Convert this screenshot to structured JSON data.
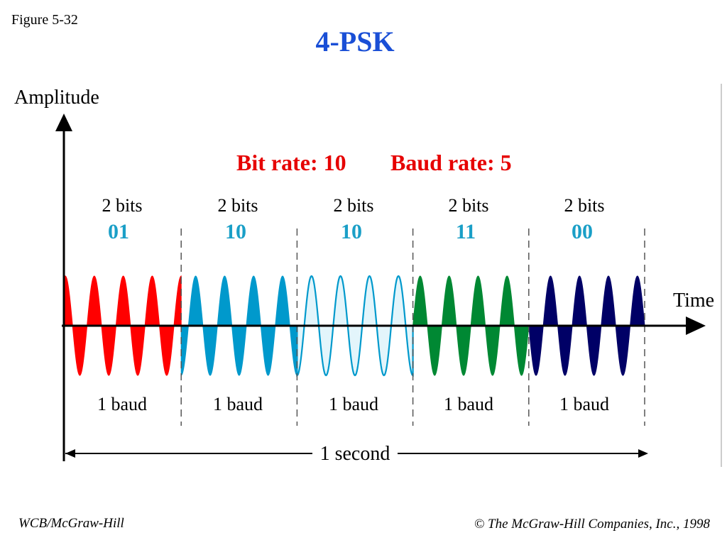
{
  "figure_label": "Figure 5-32",
  "title": "4-PSK",
  "y_axis_label": "Amplitude",
  "x_axis_label": "Time",
  "bit_rate_label": "Bit rate: 10",
  "baud_rate_label": "Baud rate: 5",
  "duration_label": "1 second",
  "segments": [
    {
      "bits_label": "2 bits",
      "code": "01",
      "baud_label": "1 baud",
      "color": "#ff0000",
      "style": "filled",
      "phase": 0
    },
    {
      "bits_label": "2 bits",
      "code": "10",
      "baud_label": "1 baud",
      "color": "#0099cc",
      "style": "filled",
      "phase": 180
    },
    {
      "bits_label": "2 bits",
      "code": "10",
      "baud_label": "1 baud",
      "color": "#0099cc",
      "style": "outline",
      "phase": 180
    },
    {
      "bits_label": "2 bits",
      "code": "11",
      "baud_label": "1 baud",
      "color": "#008833",
      "style": "filled",
      "phase": 270
    },
    {
      "bits_label": "2 bits",
      "code": "00",
      "baud_label": "1 baud",
      "color": "#000066",
      "style": "filled",
      "phase": 90
    }
  ],
  "colors": {
    "title": "#1a4fd6",
    "rate_text": "#e60000",
    "code_text": "#1a9fc7",
    "axis": "#000000",
    "divider": "#555555"
  },
  "footer_left": "WCB/McGraw-Hill",
  "footer_right": "© The McGraw-Hill Companies, Inc., 1998"
}
